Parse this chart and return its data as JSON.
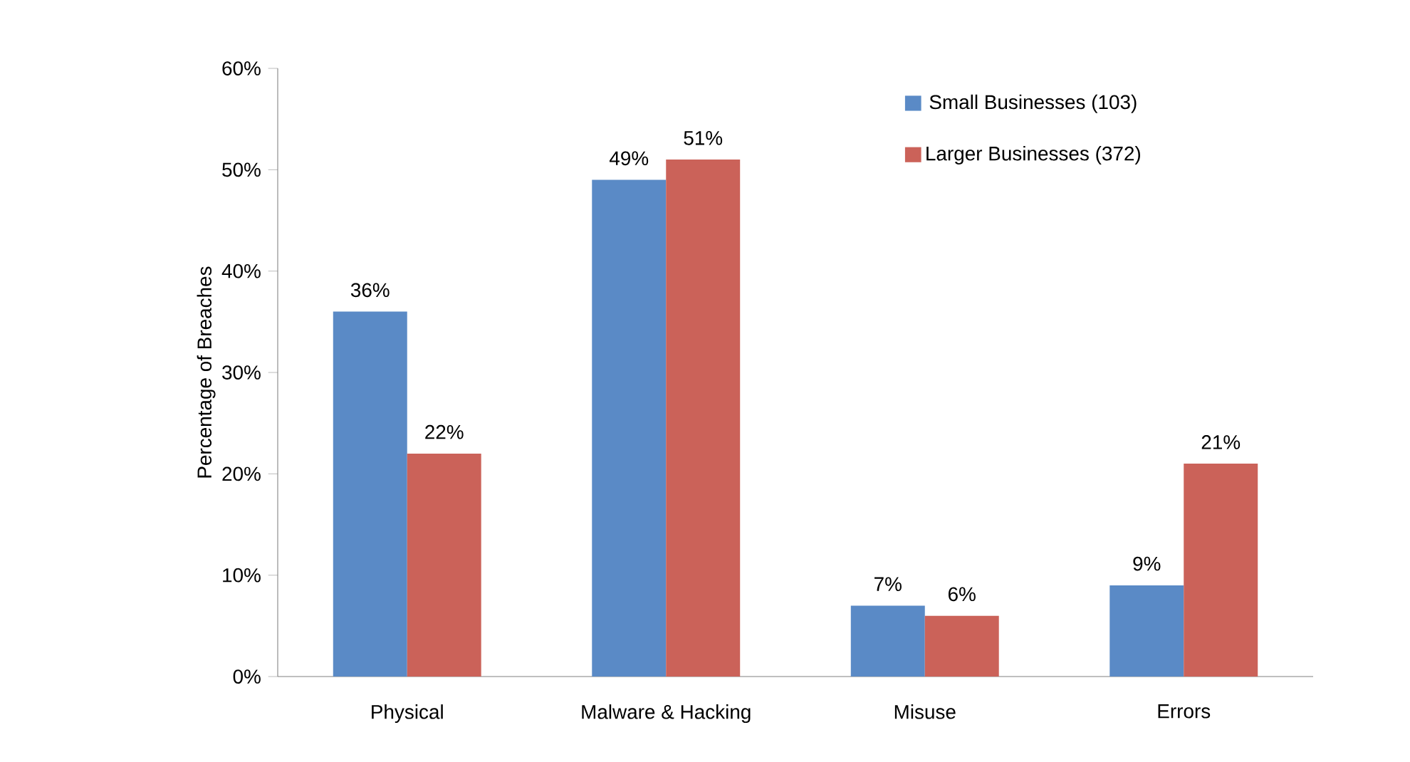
{
  "chart_data": {
    "type": "bar",
    "ylabel": "Percentage of Breaches",
    "categories": [
      "Physical",
      "Malware & Hacking",
      "Misuse",
      "Errors"
    ],
    "series": [
      {
        "name": "Small Businesses (103)",
        "color": "#5a8ac6",
        "values": [
          36,
          49,
          7,
          9
        ],
        "value_labels": [
          "36%",
          "49%",
          "7%",
          "9%"
        ]
      },
      {
        "name": "Larger Businesses (372)",
        "color": "#cb6259",
        "values": [
          22,
          51,
          6,
          21
        ],
        "value_labels": [
          "22%",
          "51%",
          "6%",
          "21%"
        ]
      }
    ],
    "ylim": [
      0,
      60
    ],
    "yticks": [
      {
        "value": 0,
        "label": "0%"
      },
      {
        "value": 10,
        "label": "10%"
      },
      {
        "value": 20,
        "label": "20%"
      },
      {
        "value": 30,
        "label": "30%"
      },
      {
        "value": 40,
        "label": "40%"
      },
      {
        "value": 50,
        "label": "50%"
      },
      {
        "value": 60,
        "label": "60%"
      }
    ],
    "legend": "top right",
    "grid": false
  }
}
